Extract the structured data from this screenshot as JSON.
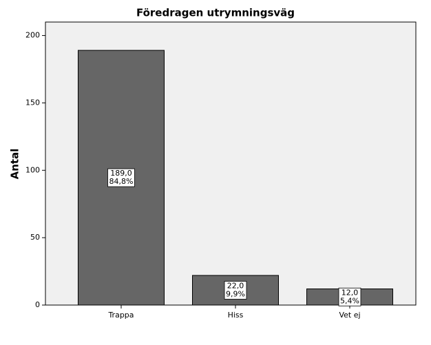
{
  "chart_data": {
    "type": "bar",
    "title": "Föredragen utrymningsväg",
    "y_label": "Antal",
    "categories": [
      "Trappa",
      "Hiss",
      "Vet ej"
    ],
    "values": [
      189,
      22,
      12
    ],
    "value_labels": [
      "189,0",
      "22,0",
      "12,0"
    ],
    "percents": [
      84.8,
      9.9,
      5.4
    ],
    "percent_labels": [
      "84,8%",
      "9,9%",
      "5,4%"
    ],
    "color": "#666666",
    "ylim": [
      0,
      210
    ],
    "yticks": [
      0,
      50,
      100,
      150,
      200
    ],
    "grid": false
  }
}
